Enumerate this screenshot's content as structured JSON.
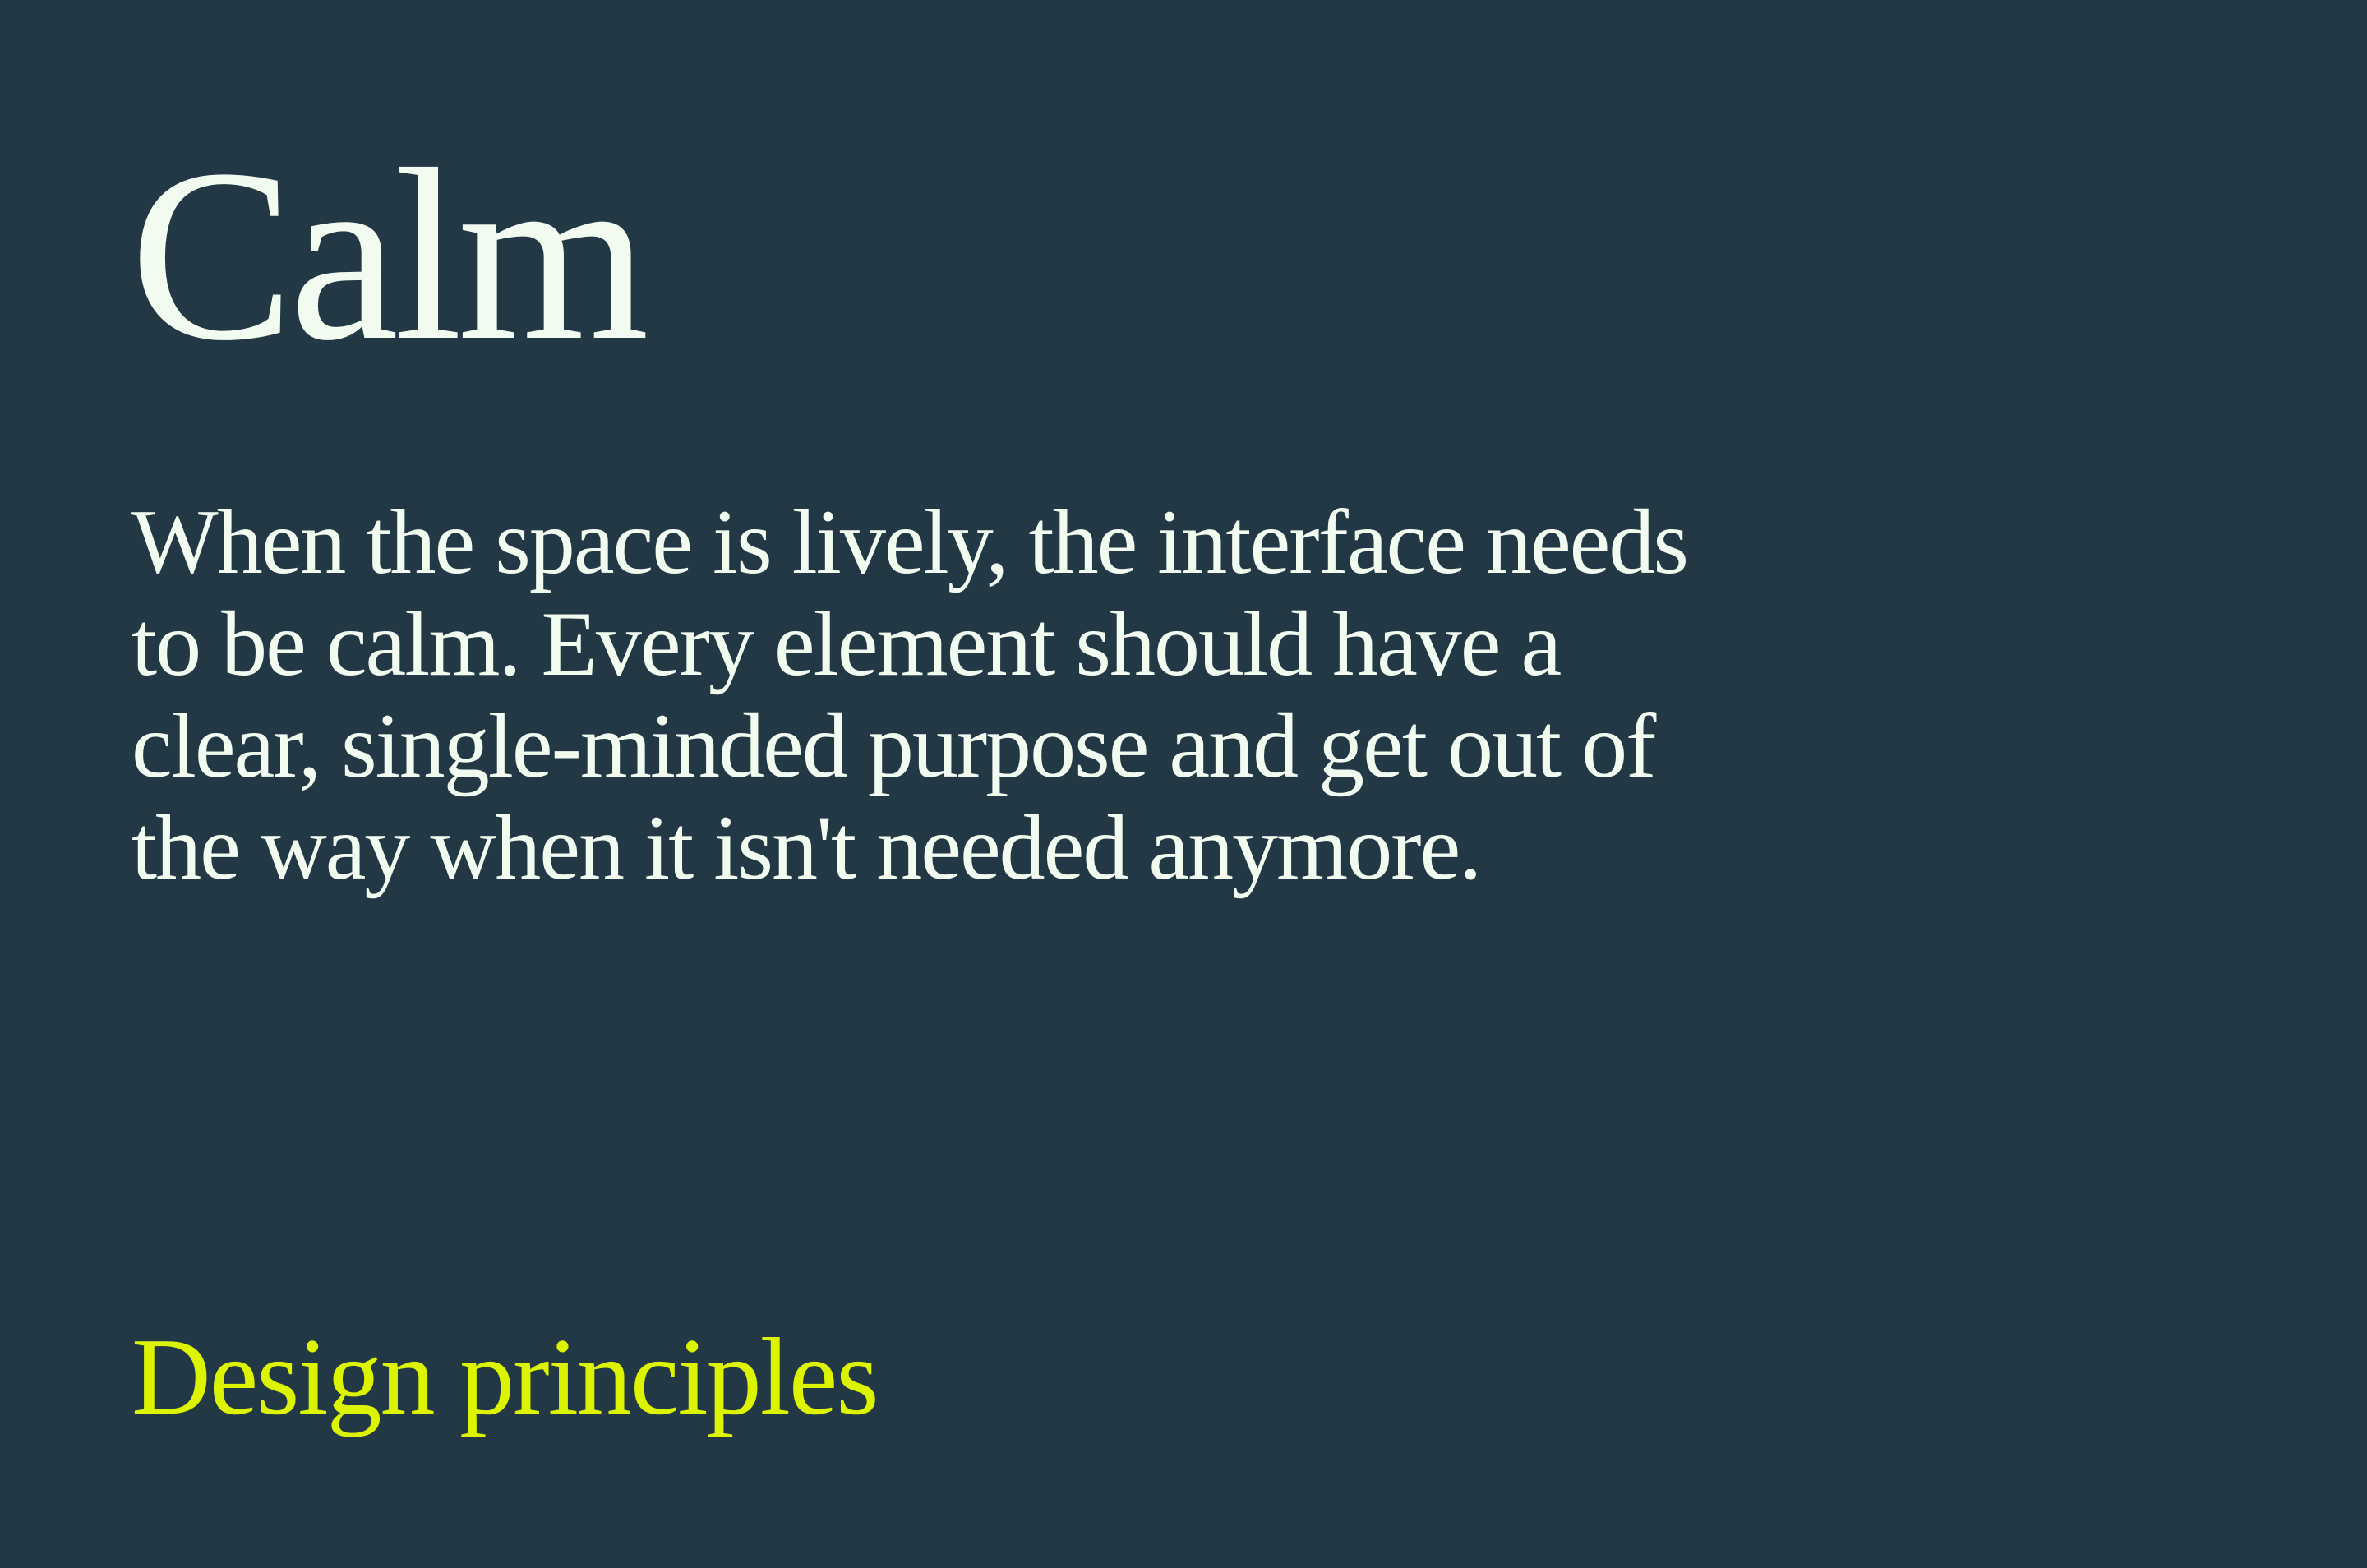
{
  "slide": {
    "title": "Calm",
    "body": "When the space is lively, the interface needs to be calm. Every element should have a clear, single-minded purpose and get out of the way when it isn't needed anymore.",
    "footer_label": "Design principles"
  },
  "colors": {
    "background": "#233845",
    "text": "#f1fbf0",
    "accent": "#dcf400"
  }
}
